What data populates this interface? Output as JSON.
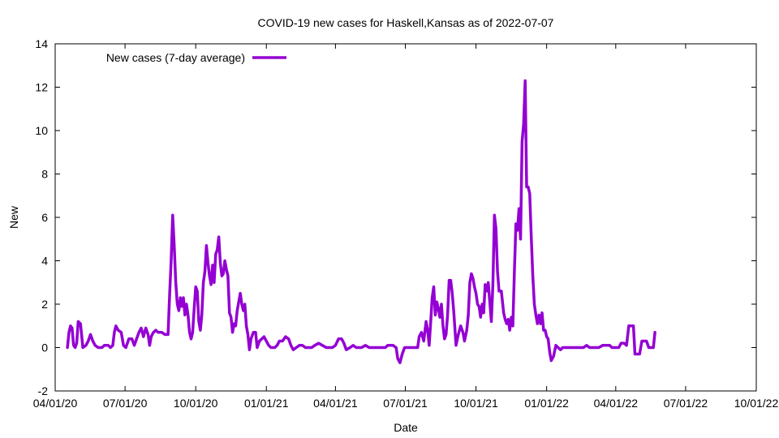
{
  "chart_data": {
    "type": "line",
    "title": "COVID-19 new cases for Haskell,Kansas as of 2022-07-07",
    "xlabel": "Date",
    "ylabel": "New",
    "x_type": "date",
    "xlim": [
      "2020-04-01",
      "2022-10-01"
    ],
    "ylim": [
      -2,
      14
    ],
    "x_ticks": [
      {
        "date": "2020-04-01",
        "label": "04/01/20"
      },
      {
        "date": "2020-07-01",
        "label": "07/01/20"
      },
      {
        "date": "2020-10-01",
        "label": "10/01/20"
      },
      {
        "date": "2021-01-01",
        "label": "01/01/21"
      },
      {
        "date": "2021-04-01",
        "label": "04/01/21"
      },
      {
        "date": "2021-07-01",
        "label": "07/01/21"
      },
      {
        "date": "2021-10-01",
        "label": "10/01/21"
      },
      {
        "date": "2022-01-01",
        "label": "01/01/22"
      },
      {
        "date": "2022-04-01",
        "label": "04/01/22"
      },
      {
        "date": "2022-07-01",
        "label": "07/01/22"
      },
      {
        "date": "2022-10-01",
        "label": "10/01/22"
      }
    ],
    "y_ticks": [
      "-2",
      "0",
      "2",
      "4",
      "6",
      "8",
      "10",
      "12",
      "14"
    ],
    "grid": false,
    "legend_position": "top-left",
    "series": [
      {
        "name": "New cases (7-day average)",
        "color": "#9400d3",
        "points": [
          [
            "2020-04-17",
            0.0
          ],
          [
            "2020-04-19",
            0.7
          ],
          [
            "2020-04-21",
            1.0
          ],
          [
            "2020-04-23",
            0.9
          ],
          [
            "2020-04-25",
            0.1
          ],
          [
            "2020-04-27",
            0.0
          ],
          [
            "2020-04-29",
            0.2
          ],
          [
            "2020-05-01",
            1.2
          ],
          [
            "2020-05-04",
            1.1
          ],
          [
            "2020-05-07",
            0.0
          ],
          [
            "2020-05-11",
            0.1
          ],
          [
            "2020-05-14",
            0.3
          ],
          [
            "2020-05-17",
            0.6
          ],
          [
            "2020-05-20",
            0.3
          ],
          [
            "2020-05-23",
            0.1
          ],
          [
            "2020-05-27",
            0.0
          ],
          [
            "2020-06-01",
            0.0
          ],
          [
            "2020-06-04",
            0.1
          ],
          [
            "2020-06-09",
            0.1
          ],
          [
            "2020-06-12",
            0.0
          ],
          [
            "2020-06-15",
            0.1
          ],
          [
            "2020-06-17",
            0.7
          ],
          [
            "2020-06-19",
            1.0
          ],
          [
            "2020-06-22",
            0.8
          ],
          [
            "2020-06-26",
            0.7
          ],
          [
            "2020-06-29",
            0.1
          ],
          [
            "2020-07-02",
            0.0
          ],
          [
            "2020-07-06",
            0.4
          ],
          [
            "2020-07-10",
            0.4
          ],
          [
            "2020-07-13",
            0.1
          ],
          [
            "2020-07-16",
            0.4
          ],
          [
            "2020-07-19",
            0.7
          ],
          [
            "2020-07-22",
            0.9
          ],
          [
            "2020-07-25",
            0.5
          ],
          [
            "2020-07-28",
            0.9
          ],
          [
            "2020-07-31",
            0.6
          ],
          [
            "2020-08-02",
            0.1
          ],
          [
            "2020-08-04",
            0.5
          ],
          [
            "2020-08-07",
            0.7
          ],
          [
            "2020-08-10",
            0.8
          ],
          [
            "2020-08-13",
            0.7
          ],
          [
            "2020-08-18",
            0.7
          ],
          [
            "2020-08-22",
            0.6
          ],
          [
            "2020-08-26",
            0.6
          ],
          [
            "2020-08-28",
            2.4
          ],
          [
            "2020-08-30",
            4.0
          ],
          [
            "2020-09-01",
            6.1
          ],
          [
            "2020-09-03",
            4.7
          ],
          [
            "2020-09-05",
            3.0
          ],
          [
            "2020-09-07",
            2.0
          ],
          [
            "2020-09-09",
            1.7
          ],
          [
            "2020-09-11",
            2.3
          ],
          [
            "2020-09-13",
            1.9
          ],
          [
            "2020-09-15",
            2.3
          ],
          [
            "2020-09-17",
            1.5
          ],
          [
            "2020-09-19",
            2.0
          ],
          [
            "2020-09-21",
            1.5
          ],
          [
            "2020-09-23",
            0.7
          ],
          [
            "2020-09-25",
            0.4
          ],
          [
            "2020-09-27",
            0.7
          ],
          [
            "2020-09-29",
            1.8
          ],
          [
            "2020-10-01",
            2.8
          ],
          [
            "2020-10-03",
            2.6
          ],
          [
            "2020-10-05",
            1.2
          ],
          [
            "2020-10-07",
            0.8
          ],
          [
            "2020-10-09",
            1.5
          ],
          [
            "2020-10-11",
            3.0
          ],
          [
            "2020-10-13",
            3.5
          ],
          [
            "2020-10-15",
            4.7
          ],
          [
            "2020-10-17",
            3.9
          ],
          [
            "2020-10-19",
            3.3
          ],
          [
            "2020-10-21",
            2.9
          ],
          [
            "2020-10-23",
            3.8
          ],
          [
            "2020-10-25",
            3.0
          ],
          [
            "2020-10-27",
            4.3
          ],
          [
            "2020-10-29",
            4.5
          ],
          [
            "2020-10-31",
            5.1
          ],
          [
            "2020-11-02",
            3.9
          ],
          [
            "2020-11-04",
            3.3
          ],
          [
            "2020-11-06",
            3.4
          ],
          [
            "2020-11-08",
            4.0
          ],
          [
            "2020-11-10",
            3.6
          ],
          [
            "2020-11-12",
            3.3
          ],
          [
            "2020-11-14",
            1.6
          ],
          [
            "2020-11-16",
            1.4
          ],
          [
            "2020-11-18",
            0.7
          ],
          [
            "2020-11-20",
            1.1
          ],
          [
            "2020-11-22",
            1.0
          ],
          [
            "2020-11-24",
            1.7
          ],
          [
            "2020-11-26",
            2.1
          ],
          [
            "2020-11-28",
            2.5
          ],
          [
            "2020-11-30",
            2.0
          ],
          [
            "2020-12-02",
            1.7
          ],
          [
            "2020-12-04",
            2.0
          ],
          [
            "2020-12-06",
            1.0
          ],
          [
            "2020-12-08",
            0.6
          ],
          [
            "2020-12-10",
            -0.1
          ],
          [
            "2020-12-12",
            0.4
          ],
          [
            "2020-12-15",
            0.7
          ],
          [
            "2020-12-18",
            0.7
          ],
          [
            "2020-12-20",
            0.0
          ],
          [
            "2020-12-23",
            0.3
          ],
          [
            "2020-12-26",
            0.4
          ],
          [
            "2020-12-29",
            0.5
          ],
          [
            "2021-01-01",
            0.3
          ],
          [
            "2021-01-04",
            0.1
          ],
          [
            "2021-01-07",
            0.0
          ],
          [
            "2021-01-12",
            0.0
          ],
          [
            "2021-01-15",
            0.1
          ],
          [
            "2021-01-18",
            0.3
          ],
          [
            "2021-01-22",
            0.3
          ],
          [
            "2021-01-26",
            0.5
          ],
          [
            "2021-01-30",
            0.4
          ],
          [
            "2021-02-02",
            0.1
          ],
          [
            "2021-02-05",
            -0.1
          ],
          [
            "2021-02-09",
            0.0
          ],
          [
            "2021-02-13",
            0.1
          ],
          [
            "2021-02-17",
            0.1
          ],
          [
            "2021-02-21",
            0.0
          ],
          [
            "2021-03-01",
            0.0
          ],
          [
            "2021-03-05",
            0.1
          ],
          [
            "2021-03-10",
            0.2
          ],
          [
            "2021-03-15",
            0.1
          ],
          [
            "2021-03-20",
            0.0
          ],
          [
            "2021-03-28",
            0.0
          ],
          [
            "2021-04-01",
            0.1
          ],
          [
            "2021-04-05",
            0.4
          ],
          [
            "2021-04-09",
            0.4
          ],
          [
            "2021-04-12",
            0.2
          ],
          [
            "2021-04-15",
            -0.1
          ],
          [
            "2021-04-20",
            0.0
          ],
          [
            "2021-04-24",
            0.1
          ],
          [
            "2021-04-28",
            0.0
          ],
          [
            "2021-05-05",
            0.0
          ],
          [
            "2021-05-10",
            0.1
          ],
          [
            "2021-05-15",
            0.0
          ],
          [
            "2021-05-25",
            0.0
          ],
          [
            "2021-06-05",
            0.0
          ],
          [
            "2021-06-08",
            0.1
          ],
          [
            "2021-06-15",
            0.1
          ],
          [
            "2021-06-19",
            0.0
          ],
          [
            "2021-06-21",
            -0.5
          ],
          [
            "2021-06-24",
            -0.7
          ],
          [
            "2021-06-27",
            -0.3
          ],
          [
            "2021-06-30",
            0.0
          ],
          [
            "2021-07-05",
            0.0
          ],
          [
            "2021-07-12",
            0.0
          ],
          [
            "2021-07-17",
            0.0
          ],
          [
            "2021-07-19",
            0.5
          ],
          [
            "2021-07-22",
            0.7
          ],
          [
            "2021-07-25",
            0.3
          ],
          [
            "2021-07-28",
            1.2
          ],
          [
            "2021-07-30",
            0.8
          ],
          [
            "2021-08-01",
            0.1
          ],
          [
            "2021-08-03",
            1.2
          ],
          [
            "2021-08-05",
            2.3
          ],
          [
            "2021-08-07",
            2.8
          ],
          [
            "2021-08-09",
            1.5
          ],
          [
            "2021-08-11",
            2.1
          ],
          [
            "2021-08-13",
            1.8
          ],
          [
            "2021-08-15",
            1.4
          ],
          [
            "2021-08-17",
            2.0
          ],
          [
            "2021-08-19",
            1.0
          ],
          [
            "2021-08-21",
            0.4
          ],
          [
            "2021-08-23",
            0.6
          ],
          [
            "2021-08-25",
            1.5
          ],
          [
            "2021-08-27",
            3.1
          ],
          [
            "2021-08-29",
            3.1
          ],
          [
            "2021-08-31",
            2.5
          ],
          [
            "2021-09-02",
            1.7
          ],
          [
            "2021-09-05",
            0.1
          ],
          [
            "2021-09-08",
            0.6
          ],
          [
            "2021-09-11",
            1.0
          ],
          [
            "2021-09-14",
            0.7
          ],
          [
            "2021-09-16",
            0.3
          ],
          [
            "2021-09-19",
            0.8
          ],
          [
            "2021-09-21",
            1.5
          ],
          [
            "2021-09-23",
            3.0
          ],
          [
            "2021-09-25",
            3.4
          ],
          [
            "2021-09-27",
            3.2
          ],
          [
            "2021-09-29",
            2.8
          ],
          [
            "2021-10-01",
            2.5
          ],
          [
            "2021-10-03",
            2.0
          ],
          [
            "2021-10-05",
            1.9
          ],
          [
            "2021-10-07",
            1.4
          ],
          [
            "2021-10-09",
            2.0
          ],
          [
            "2021-10-11",
            1.6
          ],
          [
            "2021-10-13",
            2.9
          ],
          [
            "2021-10-15",
            2.6
          ],
          [
            "2021-10-17",
            3.0
          ],
          [
            "2021-10-19",
            2.1
          ],
          [
            "2021-10-21",
            1.2
          ],
          [
            "2021-10-23",
            2.9
          ],
          [
            "2021-10-25",
            6.1
          ],
          [
            "2021-10-27",
            5.5
          ],
          [
            "2021-10-29",
            3.5
          ],
          [
            "2021-10-31",
            2.6
          ],
          [
            "2021-11-03",
            2.6
          ],
          [
            "2021-11-06",
            1.6
          ],
          [
            "2021-11-08",
            1.3
          ],
          [
            "2021-11-10",
            1.1
          ],
          [
            "2021-11-12",
            1.3
          ],
          [
            "2021-11-14",
            0.8
          ],
          [
            "2021-11-16",
            1.4
          ],
          [
            "2021-11-18",
            1.0
          ],
          [
            "2021-11-20",
            3.5
          ],
          [
            "2021-11-22",
            5.7
          ],
          [
            "2021-11-24",
            5.4
          ],
          [
            "2021-11-26",
            6.4
          ],
          [
            "2021-11-28",
            5.0
          ],
          [
            "2021-11-30",
            9.5
          ],
          [
            "2021-12-02",
            10.3
          ],
          [
            "2021-12-04",
            12.3
          ],
          [
            "2021-12-06",
            7.4
          ],
          [
            "2021-12-08",
            7.4
          ],
          [
            "2021-12-10",
            7.1
          ],
          [
            "2021-12-12",
            5.1
          ],
          [
            "2021-12-14",
            3.3
          ],
          [
            "2021-12-16",
            2.0
          ],
          [
            "2021-12-18",
            1.5
          ],
          [
            "2021-12-20",
            1.1
          ],
          [
            "2021-12-22",
            1.5
          ],
          [
            "2021-12-24",
            1.1
          ],
          [
            "2021-12-26",
            1.6
          ],
          [
            "2021-12-28",
            0.8
          ],
          [
            "2021-12-30",
            0.8
          ],
          [
            "2022-01-01",
            0.5
          ],
          [
            "2022-01-03",
            0.4
          ],
          [
            "2022-01-05",
            -0.2
          ],
          [
            "2022-01-07",
            -0.6
          ],
          [
            "2022-01-10",
            -0.4
          ],
          [
            "2022-01-13",
            0.1
          ],
          [
            "2022-01-16",
            0.0
          ],
          [
            "2022-01-19",
            -0.1
          ],
          [
            "2022-01-22",
            0.0
          ],
          [
            "2022-02-01",
            0.0
          ],
          [
            "2022-02-10",
            0.0
          ],
          [
            "2022-02-18",
            0.0
          ],
          [
            "2022-02-22",
            0.1
          ],
          [
            "2022-02-26",
            0.0
          ],
          [
            "2022-03-02",
            0.0
          ],
          [
            "2022-03-10",
            0.0
          ],
          [
            "2022-03-15",
            0.1
          ],
          [
            "2022-03-20",
            0.1
          ],
          [
            "2022-03-24",
            0.1
          ],
          [
            "2022-03-27",
            0.0
          ],
          [
            "2022-04-01",
            0.0
          ],
          [
            "2022-04-05",
            0.0
          ],
          [
            "2022-04-08",
            0.2
          ],
          [
            "2022-04-12",
            0.2
          ],
          [
            "2022-04-15",
            0.1
          ],
          [
            "2022-04-18",
            1.0
          ],
          [
            "2022-04-21",
            1.0
          ],
          [
            "2022-04-24",
            1.0
          ],
          [
            "2022-04-26",
            -0.3
          ],
          [
            "2022-04-29",
            -0.3
          ],
          [
            "2022-05-02",
            -0.3
          ],
          [
            "2022-05-05",
            0.3
          ],
          [
            "2022-05-08",
            0.3
          ],
          [
            "2022-05-11",
            0.3
          ],
          [
            "2022-05-14",
            0.0
          ],
          [
            "2022-05-17",
            0.0
          ],
          [
            "2022-05-20",
            0.0
          ],
          [
            "2022-05-22",
            0.7
          ]
        ]
      }
    ]
  }
}
